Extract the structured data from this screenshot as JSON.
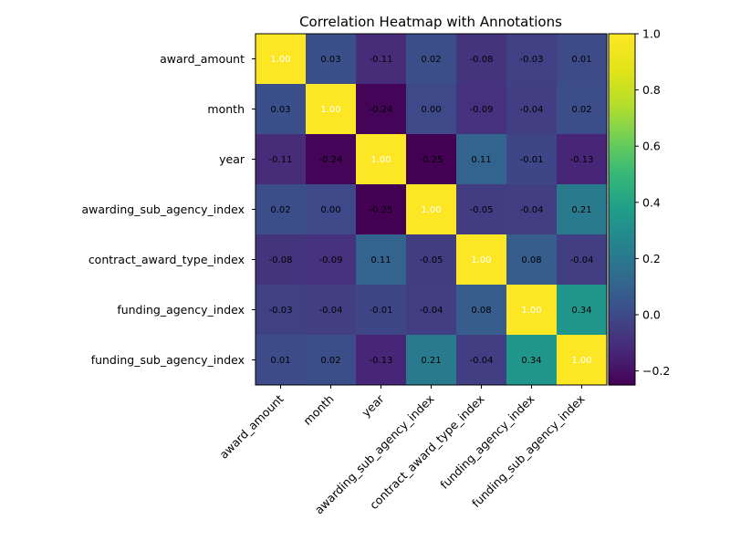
{
  "chart_data": {
    "type": "heatmap",
    "title": "Correlation Heatmap with Annotations",
    "xlabel": "",
    "ylabel": "",
    "labels": [
      "award_amount",
      "month",
      "year",
      "awarding_sub_agency_index",
      "contract_award_type_index",
      "funding_agency_index",
      "funding_sub_agency_index"
    ],
    "matrix": [
      [
        1.0,
        0.03,
        -0.11,
        0.02,
        -0.08,
        -0.03,
        0.01
      ],
      [
        0.03,
        1.0,
        -0.24,
        -0.0,
        -0.09,
        -0.04,
        0.02
      ],
      [
        -0.11,
        -0.24,
        1.0,
        -0.25,
        0.11,
        -0.01,
        -0.13
      ],
      [
        0.02,
        -0.0,
        -0.25,
        1.0,
        -0.05,
        -0.04,
        0.21
      ],
      [
        -0.08,
        -0.09,
        0.11,
        -0.05,
        1.0,
        0.08,
        -0.04
      ],
      [
        -0.03,
        -0.04,
        -0.01,
        -0.04,
        0.08,
        1.0,
        0.34
      ],
      [
        0.01,
        0.02,
        -0.13,
        0.21,
        -0.04,
        0.34,
        1.0
      ]
    ],
    "colorscale": "viridis",
    "vmin": -0.25,
    "vmax": 1.0,
    "colorbar_ticks": [
      -0.2,
      0.0,
      0.2,
      0.4,
      0.6,
      0.8,
      1.0
    ],
    "colorbar_tick_labels": [
      "−0.2",
      "0.0",
      "0.2",
      "0.4",
      "0.6",
      "0.8",
      "1.0"
    ],
    "annotations": true,
    "annotation_format": "2 decimals",
    "grid": false
  }
}
